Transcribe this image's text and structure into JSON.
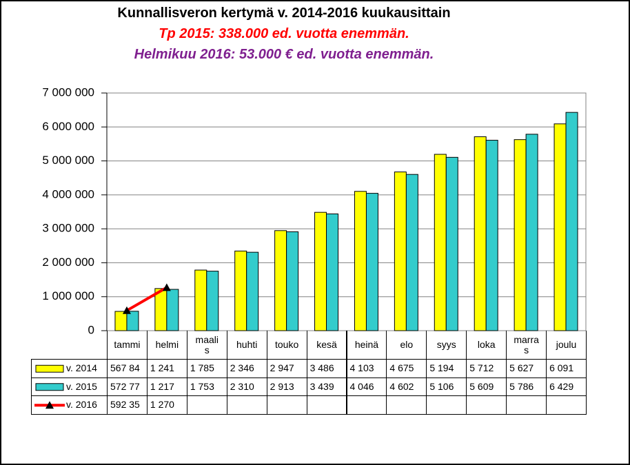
{
  "chart_data": {
    "type": "bar",
    "title": "Kunnallisveron kertymä v. 2014-2016 kuukausittain",
    "subtitles": [
      {
        "text": "Tp 2015: 338.000 ed. vuotta enemmän.",
        "color": "#ff0000"
      },
      {
        "text": "Helmikuu 2016: 53.000 € ed. vuotta enemmän.",
        "color": "#7f1f8f"
      }
    ],
    "categories": [
      "tammi",
      "helmi",
      "maalis",
      "huhti",
      "touko",
      "kesä",
      "heinä",
      "elo",
      "syys",
      "loka",
      "marras",
      "joulu"
    ],
    "series": [
      {
        "name": "v. 2014",
        "type": "bar",
        "color": "#ffff00",
        "values": [
          567840,
          1241000,
          1785000,
          2346000,
          2947000,
          3486000,
          4103000,
          4675000,
          5194000,
          5712000,
          5627000,
          6091000
        ],
        "value_labels": [
          "567 84",
          "1 241",
          "1 785",
          "2 346",
          "2 947",
          "3 486",
          "4 103",
          "4 675",
          "5 194",
          "5 712",
          "5 627",
          "6 091"
        ]
      },
      {
        "name": "v. 2015",
        "type": "bar",
        "color": "#33cccc",
        "values": [
          572770,
          1217000,
          1753000,
          2310000,
          2913000,
          3439000,
          4046000,
          4602000,
          5106000,
          5609000,
          5786000,
          6429000
        ],
        "value_labels": [
          "572 77",
          "1 217",
          "1 753",
          "2 310",
          "2 913",
          "3 439",
          "4 046",
          "4 602",
          "5 106",
          "5 609",
          "5 786",
          "6 429"
        ]
      },
      {
        "name": "v. 2016",
        "type": "line",
        "color": "#ff0000",
        "marker_color": "#000000",
        "values": [
          592350,
          1270000,
          null,
          null,
          null,
          null,
          null,
          null,
          null,
          null,
          null,
          null
        ],
        "value_labels": [
          "592 35",
          "1 270",
          null,
          null,
          null,
          null,
          null,
          null,
          null,
          null,
          null,
          null
        ]
      }
    ],
    "ylim": [
      0,
      7000000
    ],
    "yticks": [
      0,
      {
        "value": 1000000,
        "label": "1 000 000"
      },
      {
        "value": 2000000,
        "label": "2 000 000"
      },
      {
        "value": 3000000,
        "label": "3 000 000"
      },
      {
        "value": 4000000,
        "label": "4 000 000"
      },
      {
        "value": 5000000,
        "label": "5 000 000"
      },
      {
        "value": 6000000,
        "label": "6 000 000"
      },
      {
        "value": 7000000,
        "label": "7 000 000"
      }
    ],
    "grid": true,
    "legend": "data-table"
  }
}
